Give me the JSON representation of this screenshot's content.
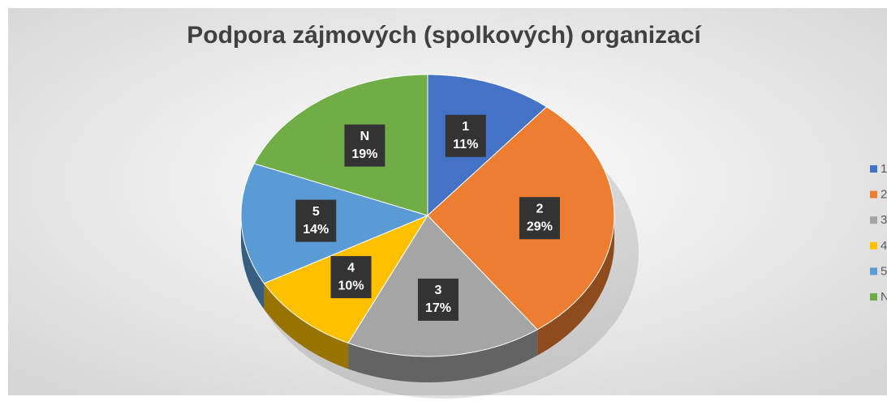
{
  "chart_data": {
    "type": "pie3d",
    "title": "Podpora zájmových (spolkových) organizací",
    "categories": [
      "1",
      "2",
      "3",
      "4",
      "5",
      "N"
    ],
    "values": [
      11,
      29,
      17,
      10,
      14,
      19
    ],
    "value_labels": [
      "11%",
      "29%",
      "17%",
      "10%",
      "14%",
      "19%"
    ],
    "colors": [
      "#4472c4",
      "#ed7d31",
      "#a5a5a5",
      "#ffc000",
      "#5b9bd5",
      "#70ad47"
    ],
    "legend": "right"
  }
}
